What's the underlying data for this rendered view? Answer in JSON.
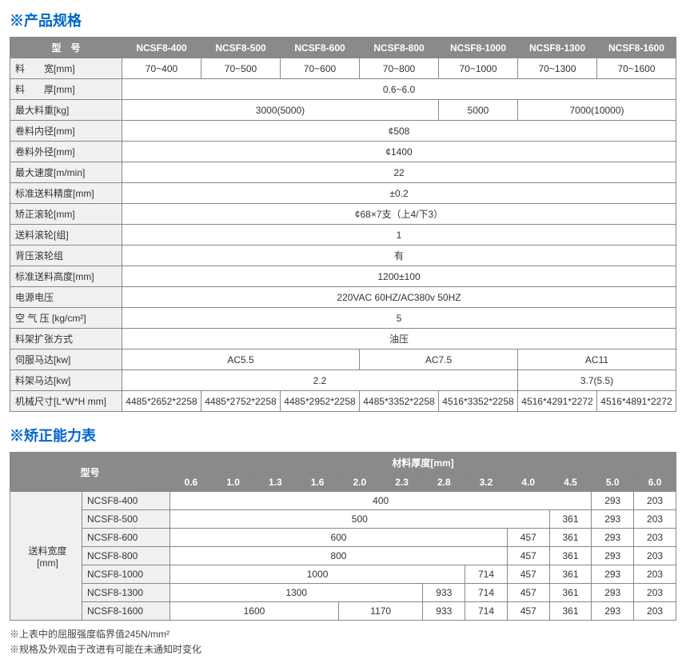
{
  "sections": {
    "spec_title": "※产品规格",
    "capacity_title": "※矫正能力表"
  },
  "table1": {
    "header_model": "型　号",
    "models": [
      "NCSF8-400",
      "NCSF8-500",
      "NCSF8-600",
      "NCSF8-800",
      "NCSF8-1000",
      "NCSF8-1300",
      "NCSF8-1600"
    ],
    "rows": {
      "width_label": "料　　宽[mm]",
      "width_vals": [
        "70~400",
        "70~500",
        "70~600",
        "70~800",
        "70~1000",
        "70~1300",
        "70~1600"
      ],
      "thickness_label": "料　　厚[mm]",
      "thickness_val": "0.6~6.0",
      "maxweight_label": "最大料重[kg]",
      "maxweight_v1": "3000(5000)",
      "maxweight_v2": "5000",
      "maxweight_v3": "7000(10000)",
      "innerdia_label": "卷料内径[mm]",
      "innerdia_val": "¢508",
      "outerdia_label": "卷料外径[mm]",
      "outerdia_val": "¢1400",
      "maxspeed_label": "最大速度[m/min]",
      "maxspeed_val": "22",
      "feedacc_label": "标准送料精度[mm]",
      "feedacc_val": "±0.2",
      "levelroller_label": "矫正滚轮[mm]",
      "levelroller_val": "¢68×7支（上4/下3）",
      "feedroller_label": "送料滚轮[组]",
      "feedroller_val": "1",
      "backroller_label": "背压滚轮组",
      "backroller_val": "有",
      "feedheight_label": "标准送料高度[mm]",
      "feedheight_val": "1200±100",
      "power_label": "电源电压",
      "power_val": "220VAC 60HZ/AC380v 50HZ",
      "air_label": "空 气 压 [kg/cm²]",
      "air_val": "5",
      "expand_label": "料架扩张方式",
      "expand_val": "油压",
      "servo_label": "伺服马达[kw]",
      "servo_v1": "AC5.5",
      "servo_v2": "AC7.5",
      "servo_v3": "AC11",
      "rackmotor_label": "料架马达[kw]",
      "rackmotor_v1": "2.2",
      "rackmotor_v2": "3.7(5.5)",
      "dim_label": "机械尺寸[L*W*H mm]",
      "dim_vals": [
        "4485*2652*2258",
        "4485*2752*2258",
        "4485*2952*2258",
        "4485*3352*2258",
        "4516*3352*2258",
        "4516*4291*2272",
        "4516*4891*2272"
      ]
    }
  },
  "table2": {
    "header_model": "型号",
    "header_thickness": "材料厚度[mm]",
    "feed_width_label": "送料宽度\n[mm]",
    "thickness_cols": [
      "0.6",
      "1.0",
      "1.3",
      "1.6",
      "2.0",
      "2.3",
      "2.8",
      "3.2",
      "4.0",
      "4.5",
      "5.0",
      "6.0"
    ],
    "rows": [
      {
        "model": "NCSF8-400",
        "span1": 10,
        "v1": "400",
        "v2": null,
        "v3": null,
        "v4": null,
        "v5": "293",
        "v6": "203"
      },
      {
        "model": "NCSF8-500",
        "span1": 9,
        "v1": "500",
        "v2": null,
        "v3": null,
        "v4": "361",
        "v5": "293",
        "v6": "203"
      },
      {
        "model": "NCSF8-600",
        "span1": 8,
        "v1": "600",
        "v2": null,
        "v3": "457",
        "v4": "361",
        "v5": "293",
        "v6": "203"
      },
      {
        "model": "NCSF8-800",
        "span1": 8,
        "v1": "800",
        "v2": null,
        "v3": "457",
        "v4": "361",
        "v5": "293",
        "v6": "203"
      },
      {
        "model": "NCSF8-1000",
        "span1": 7,
        "v1": "1000",
        "v2": "714",
        "v3": "457",
        "v4": "361",
        "v5": "293",
        "v6": "203"
      },
      {
        "model": "NCSF8-1300",
        "span1": 6,
        "v1": "1300",
        "v1b": "933",
        "v2": "714",
        "v3": "457",
        "v4": "361",
        "v5": "293",
        "v6": "203"
      },
      {
        "model": "NCSF8-1600",
        "span1": 4,
        "v1": "1600",
        "v0": "1170",
        "v1b": "933",
        "v2": "714",
        "v3": "457",
        "v4": "361",
        "v5": "293",
        "v6": "203"
      }
    ]
  },
  "footnotes": {
    "n1": "※上表中的屈服强度临界值245N/mm²",
    "n2": "※规格及外观由于改进有可能在未通知时变化"
  },
  "style": {
    "title_color": "#0066cc",
    "header_bg": "#888a8c",
    "label_bg": "#f0f0f0",
    "border_color": "#888888",
    "body_font_size": 12
  }
}
